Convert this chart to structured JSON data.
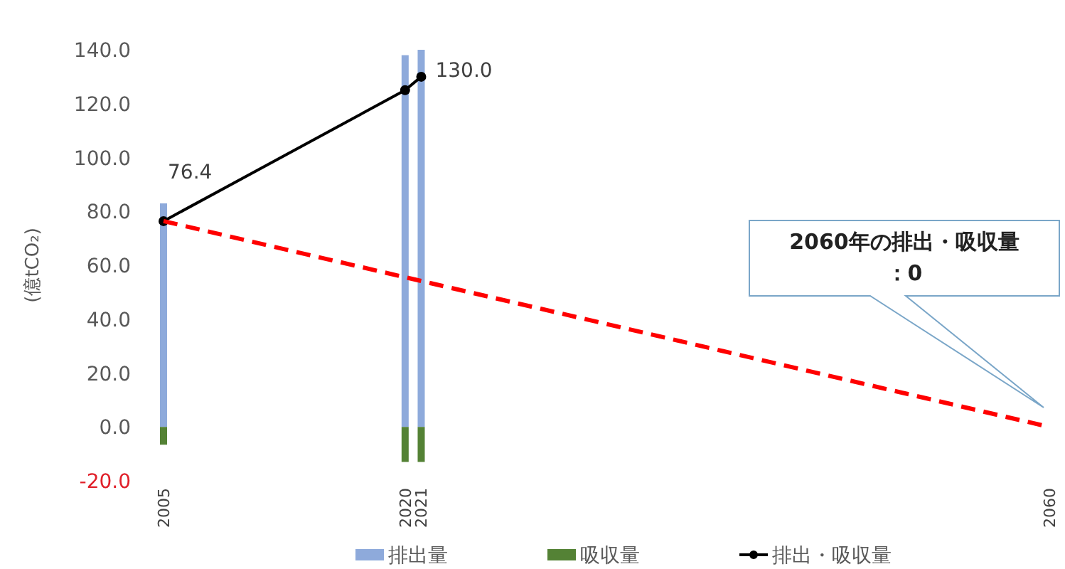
{
  "chart_data": {
    "type": "bar",
    "ylabel": "(億tCO₂)",
    "x": [
      2005,
      2020,
      2021
    ],
    "xlim": [
      2005,
      2060
    ],
    "xticks": [
      2005,
      2020,
      2021,
      2060
    ],
    "ylim": [
      -20,
      140
    ],
    "yticks": [
      {
        "value": -20,
        "label": "-20.0"
      },
      {
        "value": 0,
        "label": "0.0"
      },
      {
        "value": 20,
        "label": "20.0"
      },
      {
        "value": 40,
        "label": "40.0"
      },
      {
        "value": 60,
        "label": "60.0"
      },
      {
        "value": 80,
        "label": "80.0"
      },
      {
        "value": 100,
        "label": "100.0"
      },
      {
        "value": 120,
        "label": "120.0"
      },
      {
        "value": 140,
        "label": "140.0"
      }
    ],
    "series": [
      {
        "name": "排出量",
        "color": "#8eaadb",
        "values": [
          83,
          138,
          140
        ]
      },
      {
        "name": "吸収量",
        "color": "#548235",
        "values": [
          -6.6,
          -13,
          -13
        ]
      },
      {
        "name": "排出・吸収量",
        "type": "line",
        "color": "#000000",
        "marker": "circle",
        "values": [
          76.4,
          125,
          130.0
        ],
        "value_labels": [
          "76.4",
          null,
          "130.0"
        ]
      },
      {
        "type": "line",
        "color": "#ff0000",
        "line_style": "dashed",
        "marker": "none",
        "x": [
          2005,
          2060
        ],
        "values": [
          76.4,
          0
        ]
      }
    ],
    "annotations": [
      "2060年の排出・吸収量：0"
    ],
    "stacked": true,
    "legend": "bottom",
    "grid": false
  }
}
